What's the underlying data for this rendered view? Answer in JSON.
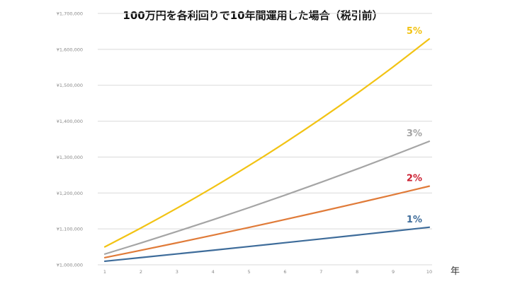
{
  "chart_data": {
    "type": "line",
    "title": "100万円を各利回りで10年間運用した場合（税引前）",
    "xlabel": "年",
    "ylabel": "",
    "x": [
      1,
      2,
      3,
      4,
      5,
      6,
      7,
      8,
      9,
      10
    ],
    "xlim": [
      1,
      10
    ],
    "ylim": [
      1000000,
      1700000
    ],
    "y_ticks": [
      1000000,
      1100000,
      1200000,
      1300000,
      1400000,
      1500000,
      1600000,
      1700000
    ],
    "y_tick_labels": [
      "¥1,000,000",
      "¥1,100,000",
      "¥1,200,000",
      "¥1,300,000",
      "¥1,400,000",
      "¥1,500,000",
      "¥1,600,000",
      "¥1,700,000"
    ],
    "grid": true,
    "legend": "none",
    "series": [
      {
        "name": "1%",
        "color": "#3e6c9a",
        "values": [
          1010000,
          1020100,
          1030301,
          1040604,
          1051010,
          1061520,
          1072135,
          1082857,
          1093685,
          1104622
        ]
      },
      {
        "name": "2%",
        "color": "#e07b39",
        "label_color": "#cc2233",
        "values": [
          1020000,
          1040400,
          1061208,
          1082432,
          1104081,
          1126162,
          1148686,
          1171659,
          1195093,
          1218994
        ]
      },
      {
        "name": "3%",
        "color": "#a5a5a5",
        "values": [
          1030000,
          1060900,
          1092727,
          1125509,
          1159274,
          1194052,
          1229874,
          1266770,
          1304773,
          1343916
        ]
      },
      {
        "name": "5%",
        "color": "#f2c314",
        "values": [
          1050000,
          1102500,
          1157625,
          1215506,
          1276282,
          1340096,
          1407100,
          1477455,
          1551328,
          1628895
        ]
      }
    ]
  }
}
